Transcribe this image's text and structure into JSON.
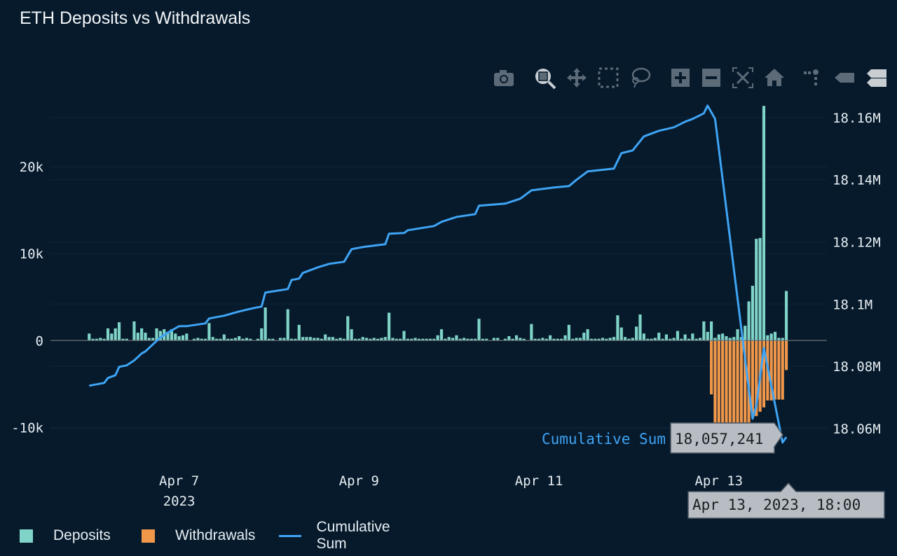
{
  "title": "ETH Deposits vs Withdrawals",
  "toolbar": [
    "camera-icon",
    "zoom-icon",
    "pan-icon",
    "box-select-icon",
    "lasso-select-icon",
    "zoom-in-icon",
    "zoom-out-icon",
    "autoscale-icon",
    "reset-axes-icon",
    "spike-lines-icon",
    "hover-closest-icon",
    "hover-compare-icon"
  ],
  "colors": {
    "background": "#061a2c",
    "deposits": "#7fd3c7",
    "withdrawals": "#f0974a",
    "cumulative": "#3fa4f4"
  },
  "legend": {
    "deposits": "Deposits",
    "withdrawals": "Withdrawals",
    "cumulative": "Cumulative Sum"
  },
  "tooltip": {
    "series": "Cumulative Sum",
    "value": "18,057,241",
    "x": "Apr 13, 2023, 18:00"
  },
  "chart_data": {
    "type": "bar+line",
    "title": "ETH Deposits vs Withdrawals",
    "x_start": "2023-04-06 00:00",
    "x_interval": "hourly",
    "xlim": [
      "2023-04-05 13:40",
      "2023-04-14 04:50"
    ],
    "x_ticks": [
      {
        "label": "Apr 7",
        "sub": "2023",
        "date": "2023-04-07"
      },
      {
        "label": "Apr 9",
        "sub": "",
        "date": "2023-04-09"
      },
      {
        "label": "Apr 11",
        "sub": "",
        "date": "2023-04-11"
      },
      {
        "label": "Apr 13",
        "sub": "",
        "date": "2023-04-13"
      }
    ],
    "y_left": {
      "range": [
        -13600,
        27100
      ],
      "ticks": [
        {
          "v": -10000,
          "label": "-10k"
        },
        {
          "v": 0,
          "label": "0"
        },
        {
          "v": 10000,
          "label": "10k"
        },
        {
          "v": 20000,
          "label": "20k"
        }
      ]
    },
    "y_right": {
      "range": [
        18050300,
        18164000
      ],
      "ticks": [
        {
          "v": 18060000,
          "label": "18.06M"
        },
        {
          "v": 18080000,
          "label": "18.08M"
        },
        {
          "v": 18100000,
          "label": "18.1M"
        },
        {
          "v": 18120000,
          "label": "18.12M"
        },
        {
          "v": 18140000,
          "label": "18.14M"
        },
        {
          "v": 18160000,
          "label": "18.16M"
        }
      ]
    },
    "grid": true,
    "legend_position": "bottom-left",
    "series": [
      {
        "name": "Deposits",
        "type": "bar",
        "axis": "left",
        "values": [
          800,
          200,
          200,
          300,
          200,
          1400,
          800,
          1400,
          2100,
          200,
          200,
          0,
          2200,
          900,
          1400,
          900,
          300,
          300,
          1400,
          1100,
          1300,
          1000,
          1300,
          800,
          500,
          600,
          800,
          0,
          200,
          300,
          200,
          200,
          2000,
          400,
          200,
          200,
          700,
          200,
          200,
          300,
          500,
          200,
          300,
          200,
          0,
          200,
          1400,
          3800,
          200,
          200,
          0,
          300,
          300,
          3600,
          200,
          200,
          1800,
          400,
          400,
          400,
          300,
          300,
          200,
          700,
          400,
          400,
          200,
          300,
          200,
          2800,
          1300,
          200,
          200,
          400,
          300,
          200,
          300,
          200,
          300,
          400,
          3200,
          300,
          200,
          200,
          1100,
          200,
          200,
          300,
          200,
          200,
          200,
          200,
          200,
          600,
          1300,
          200,
          400,
          300,
          600,
          200,
          300,
          200,
          200,
          200,
          2500,
          200,
          200,
          0,
          300,
          300,
          0,
          200,
          500,
          200,
          600,
          300,
          200,
          0,
          1900,
          200,
          200,
          300,
          200,
          600,
          200,
          200,
          200,
          600,
          1800,
          200,
          300,
          300,
          900,
          1300,
          200,
          200,
          200,
          300,
          200,
          300,
          400,
          2900,
          1500,
          400,
          200,
          300,
          1600,
          3000,
          800,
          200,
          200,
          300,
          900,
          200,
          700,
          200,
          300,
          1100,
          200,
          700,
          200,
          800,
          200,
          300,
          2200,
          1000,
          2200,
          300,
          700,
          800,
          500,
          300,
          400,
          1300,
          400,
          1700,
          4500,
          6300,
          11700,
          11800,
          27000,
          600,
          800,
          1000,
          300,
          300,
          5700
        ]
      },
      {
        "name": "Withdrawals",
        "type": "bar",
        "axis": "left",
        "values": [
          0,
          0,
          0,
          0,
          0,
          0,
          0,
          0,
          0,
          0,
          0,
          0,
          0,
          0,
          0,
          0,
          0,
          0,
          0,
          0,
          0,
          0,
          0,
          0,
          0,
          0,
          0,
          0,
          0,
          0,
          0,
          0,
          0,
          0,
          0,
          0,
          0,
          0,
          0,
          0,
          0,
          0,
          0,
          0,
          0,
          0,
          0,
          0,
          0,
          0,
          0,
          0,
          0,
          0,
          0,
          0,
          0,
          0,
          0,
          0,
          0,
          0,
          0,
          0,
          0,
          0,
          0,
          0,
          0,
          0,
          0,
          0,
          0,
          0,
          0,
          0,
          0,
          0,
          0,
          0,
          0,
          0,
          0,
          0,
          0,
          0,
          0,
          0,
          0,
          0,
          0,
          0,
          0,
          0,
          0,
          0,
          0,
          0,
          0,
          0,
          0,
          0,
          0,
          0,
          0,
          0,
          0,
          0,
          0,
          0,
          0,
          0,
          0,
          0,
          0,
          0,
          0,
          0,
          0,
          0,
          0,
          0,
          0,
          0,
          0,
          0,
          0,
          0,
          0,
          0,
          0,
          0,
          0,
          0,
          0,
          0,
          0,
          0,
          0,
          0,
          0,
          0,
          0,
          0,
          0,
          0,
          0,
          0,
          0,
          0,
          0,
          0,
          0,
          0,
          0,
          0,
          0,
          0,
          0,
          0,
          0,
          0,
          0,
          0,
          0,
          0,
          -6200,
          -9600,
          -9600,
          -9500,
          -9600,
          -9600,
          -9500,
          -9600,
          -9600,
          -9500,
          -9600,
          -8800,
          -8700,
          -8200,
          -7700,
          -6900,
          -6900,
          -6800,
          -6800,
          -6800,
          -3400
        ]
      },
      {
        "name": "Cumulative Sum",
        "type": "line",
        "axis": "right",
        "points": [
          [
            "2023-04-06 00:00",
            18073750
          ],
          [
            "2023-04-06 04:00",
            18074650
          ],
          [
            "2023-04-06 05:00",
            18076230
          ],
          [
            "2023-04-06 07:00",
            18077130
          ],
          [
            "2023-04-06 08:00",
            18079830
          ],
          [
            "2023-04-06 10:00",
            18080280
          ],
          [
            "2023-04-06 12:00",
            18081860
          ],
          [
            "2023-04-06 14:00",
            18084110
          ],
          [
            "2023-04-06 15:00",
            18084790
          ],
          [
            "2023-04-06 16:00",
            18085920
          ],
          [
            "2023-04-06 19:00",
            18089290
          ],
          [
            "2023-04-06 22:00",
            18091540
          ],
          [
            "2023-04-07 00:00",
            18092890
          ],
          [
            "2023-04-07 02:00",
            18092890
          ],
          [
            "2023-04-07 07:00",
            18093790
          ],
          [
            "2023-04-07 08:00",
            18095370
          ],
          [
            "2023-04-07 12:00",
            18096270
          ],
          [
            "2023-04-07 16:00",
            18097620
          ],
          [
            "2023-04-07 20:00",
            18098750
          ],
          [
            "2023-04-07 22:00",
            18099200
          ],
          [
            "2023-04-07 23:00",
            18103700
          ],
          [
            "2023-04-08 05:00",
            18104830
          ],
          [
            "2023-04-08 06:00",
            18107760
          ],
          [
            "2023-04-08 08:00",
            18108200
          ],
          [
            "2023-04-08 09:00",
            18110010
          ],
          [
            "2023-04-08 13:00",
            18111810
          ],
          [
            "2023-04-08 16:00",
            18112930
          ],
          [
            "2023-04-08 20:00",
            18113610
          ],
          [
            "2023-04-08 22:00",
            18117660
          ],
          [
            "2023-04-09 01:00",
            18118340
          ],
          [
            "2023-04-09 07:00",
            18119240
          ],
          [
            "2023-04-09 08:00",
            18122620
          ],
          [
            "2023-04-09 12:00",
            18122840
          ],
          [
            "2023-04-09 13:00",
            18123740
          ],
          [
            "2023-04-09 20:00",
            18125090
          ],
          [
            "2023-04-09 22:00",
            18126450
          ],
          [
            "2023-04-10 02:00",
            18128020
          ],
          [
            "2023-04-10 07:00",
            18128920
          ],
          [
            "2023-04-10 08:00",
            18131630
          ],
          [
            "2023-04-10 15:00",
            18132300
          ],
          [
            "2023-04-10 19:00",
            18133880
          ],
          [
            "2023-04-10 22:00",
            18136580
          ],
          [
            "2023-04-11 04:00",
            18137480
          ],
          [
            "2023-04-11 08:00",
            18137930
          ],
          [
            "2023-04-11 10:00",
            18139960
          ],
          [
            "2023-04-11 13:00",
            18142660
          ],
          [
            "2023-04-11 20:00",
            18143560
          ],
          [
            "2023-04-11 22:00",
            18148510
          ],
          [
            "2023-04-12 01:00",
            18149410
          ],
          [
            "2023-04-12 04:00",
            18153920
          ],
          [
            "2023-04-12 08:00",
            18155720
          ],
          [
            "2023-04-12 12:00",
            18156850
          ],
          [
            "2023-04-12 15:00",
            18158650
          ],
          [
            "2023-04-12 17:00",
            18159550
          ],
          [
            "2023-04-12 20:00",
            18161350
          ],
          [
            "2023-04-12 21:00",
            18163830
          ],
          [
            "2023-04-12 23:00",
            18159550
          ],
          [
            "2023-04-13 09:00",
            18063160
          ],
          [
            "2023-04-13 10:00",
            18067220
          ],
          [
            "2023-04-13 12:00",
            18085920
          ],
          [
            "2023-04-13 17:00",
            18055510
          ],
          [
            "2023-04-13 18:00",
            18057241
          ]
        ]
      }
    ]
  }
}
